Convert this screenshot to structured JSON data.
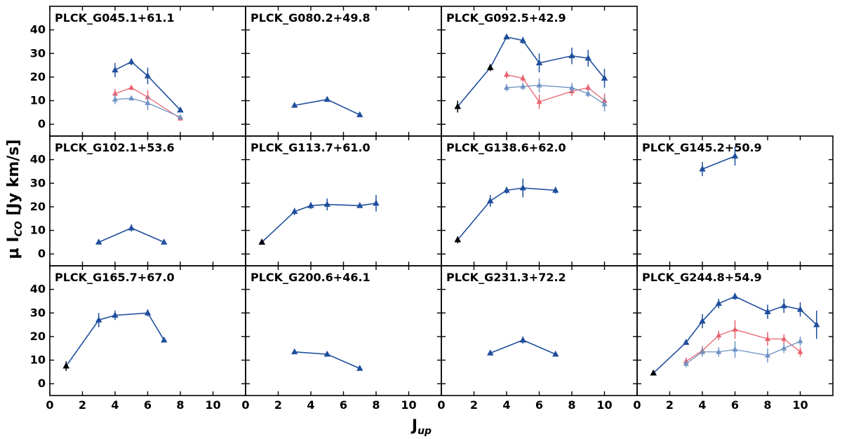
{
  "figure": {
    "xlabel": "J",
    "xlabel_sub": "up",
    "ylabel": "μ I",
    "ylabel_sub": "CO",
    "ylabel_unit": " [Jy km/s]"
  },
  "colors": {
    "main": "#1f4e9c",
    "red": "#e8636f",
    "lightblue": "#6f93c4",
    "black": "#000000"
  },
  "chart_data": {
    "type": "line",
    "xlim": [
      0,
      12
    ],
    "ylim": [
      -5,
      50
    ],
    "xticks": [
      0,
      2,
      4,
      6,
      8,
      10
    ],
    "yticks": [
      0,
      10,
      20,
      30,
      40
    ],
    "panels": [
      {
        "title": "PLCK_G045.1+61.1",
        "row": 0,
        "col": 0,
        "series": [
          {
            "color": "red",
            "x": [
              4,
              5,
              6,
              8
            ],
            "y": [
              13,
              15.5,
              11.5,
              2.5
            ],
            "err": [
              2,
              1,
              3,
              1
            ]
          },
          {
            "color": "lightblue",
            "x": [
              4,
              5,
              6,
              8
            ],
            "y": [
              10.5,
              11,
              9,
              3
            ],
            "err": [
              2,
              1,
              3,
              1
            ]
          },
          {
            "color": "main",
            "x": [
              4,
              5,
              6,
              8
            ],
            "y": [
              23,
              26.5,
              20.5,
              6
            ],
            "err": [
              3,
              1.5,
              3.5,
              1
            ]
          }
        ]
      },
      {
        "title": "PLCK_G080.2+49.8",
        "row": 0,
        "col": 1,
        "series": [
          {
            "color": "main",
            "x": [
              3,
              5,
              7
            ],
            "y": [
              8,
              10.5,
              4
            ],
            "err": [
              0.8,
              0.8,
              0.8
            ]
          }
        ]
      },
      {
        "title": "PLCK_G092.5+42.9",
        "row": 0,
        "col": 2,
        "series": [
          {
            "color": "red",
            "x": [
              4,
              5,
              6,
              8,
              9,
              10
            ],
            "y": [
              21,
              19.5,
              9.5,
              14,
              15.5,
              10
            ],
            "err": [
              1.5,
              1.5,
              3,
              2,
              1.5,
              3
            ]
          },
          {
            "color": "lightblue",
            "x": [
              4,
              5,
              6,
              8,
              9,
              10
            ],
            "y": [
              15.5,
              16,
              16.5,
              15.5,
              13,
              8.5
            ],
            "err": [
              1.5,
              1.5,
              3,
              2,
              1.5,
              3
            ]
          },
          {
            "color": "main",
            "x": [
              1,
              3,
              4,
              5,
              6,
              8,
              9,
              10
            ],
            "y": [
              7.5,
              24,
              37,
              35.5,
              26,
              29,
              28,
              19.5
            ],
            "err": [
              2.5,
              1.5,
              1,
              1.5,
              4,
              3.5,
              3.5,
              4
            ]
          },
          {
            "color": "black",
            "x": [
              1,
              3
            ],
            "y": [
              7.5,
              24
            ],
            "err": [
              2.5,
              1.5
            ],
            "markers_only": true
          }
        ]
      },
      {
        "title": "PLCK_G102.1+53.6",
        "row": 1,
        "col": 0,
        "series": [
          {
            "color": "main",
            "x": [
              3,
              5,
              7
            ],
            "y": [
              5,
              11,
              5
            ],
            "err": [
              0.8,
              1.5,
              0.8
            ]
          }
        ]
      },
      {
        "title": "PLCK_G113.7+61.0",
        "row": 1,
        "col": 1,
        "series": [
          {
            "color": "main",
            "x": [
              1,
              3,
              4,
              5,
              7,
              8
            ],
            "y": [
              5,
              18,
              20.5,
              21,
              20.5,
              21.5
            ],
            "err": [
              1,
              1.5,
              1.5,
              2.5,
              1,
              3.5
            ]
          },
          {
            "color": "black",
            "x": [
              1
            ],
            "y": [
              5
            ],
            "err": [
              1
            ],
            "markers_only": true
          }
        ]
      },
      {
        "title": "PLCK_G138.6+62.0",
        "row": 1,
        "col": 2,
        "series": [
          {
            "color": "main",
            "x": [
              1,
              3,
              4,
              5,
              7
            ],
            "y": [
              6,
              22.5,
              27,
              28,
              27
            ],
            "err": [
              1.5,
              2.5,
              1.5,
              4,
              1.5
            ]
          },
          {
            "color": "black",
            "x": [
              1
            ],
            "y": [
              6
            ],
            "err": [
              1.5
            ],
            "markers_only": true
          }
        ]
      },
      {
        "title": "PLCK_G145.2+50.9",
        "row": 1,
        "col": 3,
        "series": [
          {
            "color": "main",
            "x": [
              4,
              6
            ],
            "y": [
              36,
              41.5
            ],
            "err": [
              3,
              4
            ]
          }
        ]
      },
      {
        "title": "PLCK_G165.7+67.0",
        "row": 2,
        "col": 0,
        "series": [
          {
            "color": "main",
            "x": [
              1,
              3,
              4,
              6,
              7
            ],
            "y": [
              7.5,
              27,
              29,
              30,
              18.5
            ],
            "err": [
              2,
              3,
              2,
              1.5,
              1
            ]
          },
          {
            "color": "black",
            "x": [
              1
            ],
            "y": [
              7.5
            ],
            "err": [
              2
            ],
            "markers_only": true
          }
        ]
      },
      {
        "title": "PLCK_G200.6+46.1",
        "row": 2,
        "col": 1,
        "series": [
          {
            "color": "main",
            "x": [
              3,
              5,
              7
            ],
            "y": [
              13.5,
              12.5,
              6.5
            ],
            "err": [
              1,
              1,
              1
            ]
          }
        ]
      },
      {
        "title": "PLCK_G231.3+72.2",
        "row": 2,
        "col": 2,
        "series": [
          {
            "color": "main",
            "x": [
              3,
              5,
              7
            ],
            "y": [
              13,
              18.5,
              12.5
            ],
            "err": [
              1,
              1.5,
              1
            ]
          }
        ]
      },
      {
        "title": "PLCK_G244.8+54.9",
        "row": 2,
        "col": 3,
        "series": [
          {
            "color": "red",
            "x": [
              3,
              4,
              5,
              6,
              8,
              9,
              10
            ],
            "y": [
              9.5,
              14,
              20.5,
              23,
              19,
              19,
              13.5
            ],
            "err": [
              1.5,
              2,
              2,
              4,
              3,
              2,
              2
            ]
          },
          {
            "color": "lightblue",
            "x": [
              3,
              4,
              5,
              6,
              8,
              9,
              10
            ],
            "y": [
              8.5,
              13.5,
              13.5,
              14.5,
              12,
              15,
              18
            ],
            "err": [
              1.5,
              2,
              2,
              3.5,
              3,
              2,
              2
            ]
          },
          {
            "color": "main",
            "x": [
              1,
              3,
              4,
              5,
              6,
              8,
              9,
              10,
              11
            ],
            "y": [
              4.5,
              17.5,
              26.5,
              34,
              37,
              30.5,
              33,
              31.5,
              25
            ],
            "err": [
              1,
              1,
              3,
              2,
              1.5,
              3,
              3,
              3,
              6
            ]
          },
          {
            "color": "black",
            "x": [
              1
            ],
            "y": [
              4.5
            ],
            "err": [
              1
            ],
            "markers_only": true
          }
        ]
      }
    ]
  }
}
